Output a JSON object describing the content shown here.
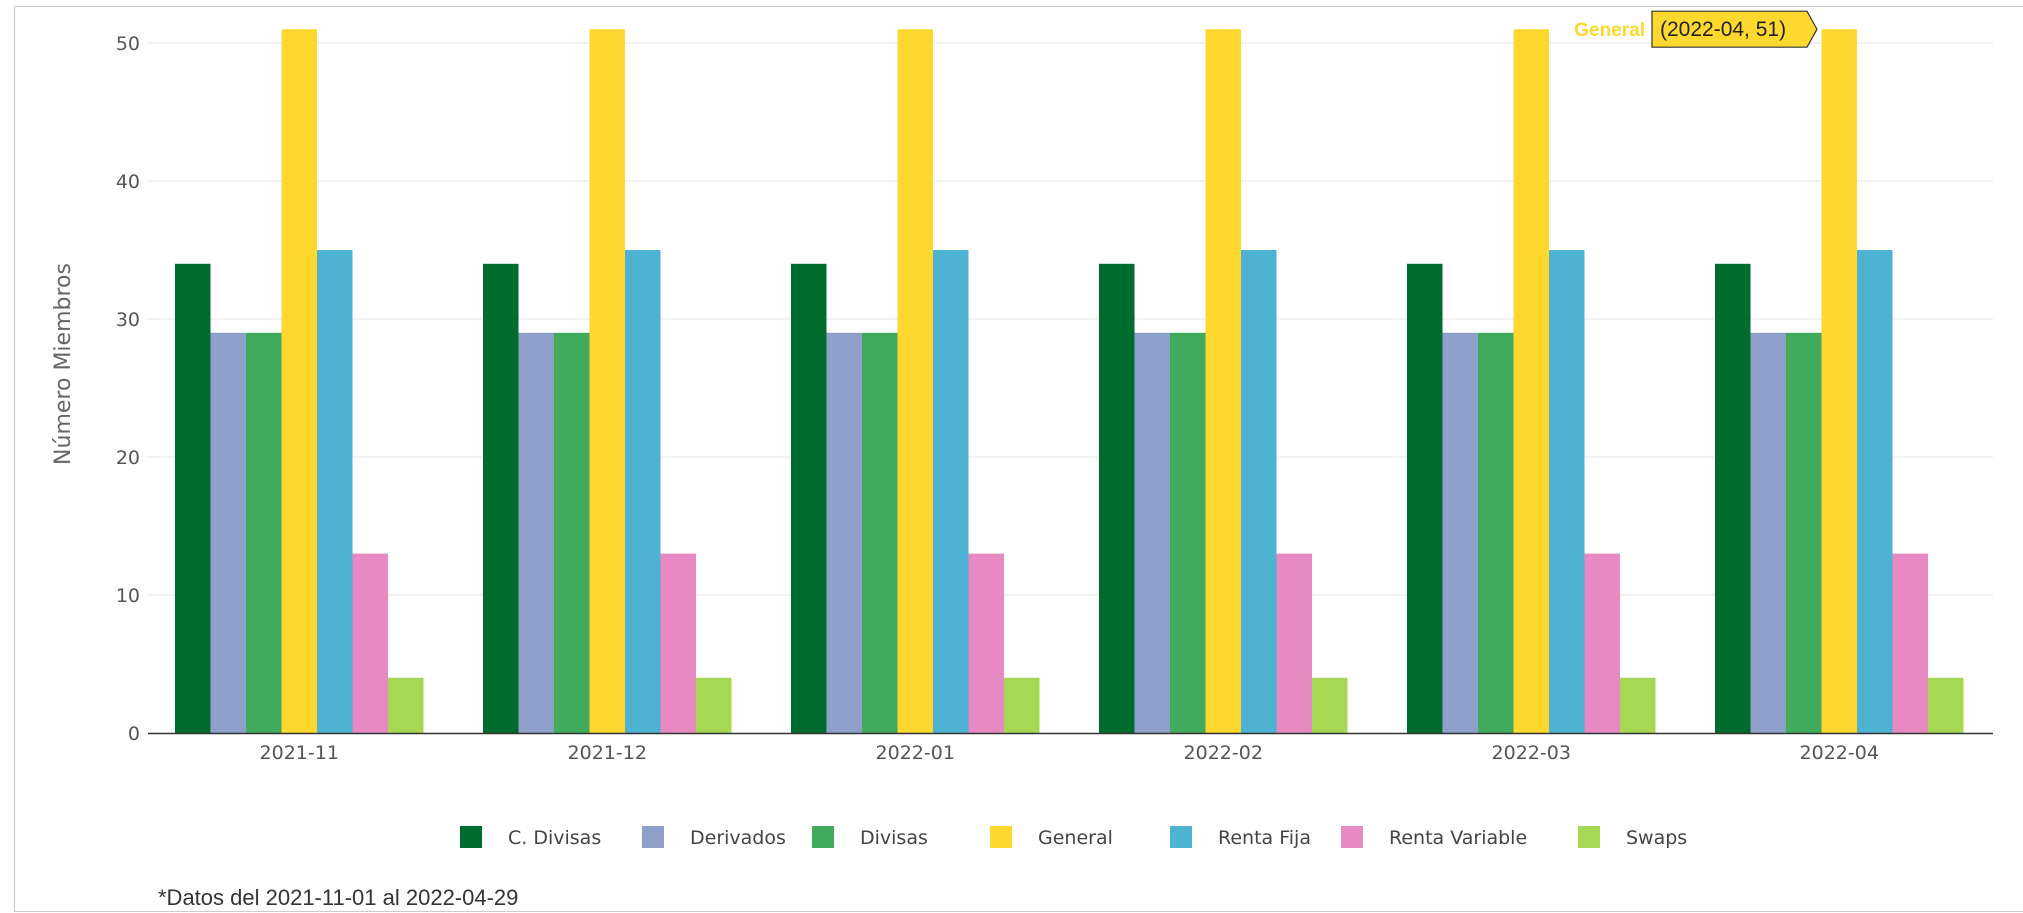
{
  "chart_data": {
    "type": "bar",
    "title": "",
    "xlabel": "",
    "ylabel": "Número Miembros",
    "ylim": [
      0,
      52
    ],
    "yticks": [
      0,
      10,
      20,
      30,
      40,
      50
    ],
    "grid": true,
    "legend_position": "bottom",
    "categories": [
      "2021-11",
      "2021-12",
      "2022-01",
      "2022-02",
      "2022-03",
      "2022-04"
    ],
    "series": [
      {
        "name": "C. Divisas",
        "color": "#006b2e",
        "values": [
          34,
          34,
          34,
          34,
          34,
          34
        ]
      },
      {
        "name": "Derivados",
        "color": "#8ea0ca",
        "values": [
          29,
          29,
          29,
          29,
          29,
          29
        ]
      },
      {
        "name": "Divisas",
        "color": "#41ab5d",
        "values": [
          29,
          29,
          29,
          29,
          29,
          29
        ]
      },
      {
        "name": "General",
        "color": "#fed82f",
        "values": [
          51,
          51,
          51,
          51,
          51,
          51
        ]
      },
      {
        "name": "Renta Fija",
        "color": "#4eb3d3",
        "values": [
          35,
          35,
          35,
          35,
          35,
          35
        ]
      },
      {
        "name": "Renta Variable",
        "color": "#e78ac3",
        "values": [
          13,
          13,
          13,
          13,
          13,
          13
        ]
      },
      {
        "name": "Swaps",
        "color": "#a6d854",
        "values": [
          4,
          4,
          4,
          4,
          4,
          4
        ]
      }
    ],
    "tooltip": {
      "series": "General",
      "text": "(2022-04, 51)",
      "background": "#fed82f"
    },
    "footnote": "*Datos del 2021-11-01 al 2022-04-29"
  }
}
